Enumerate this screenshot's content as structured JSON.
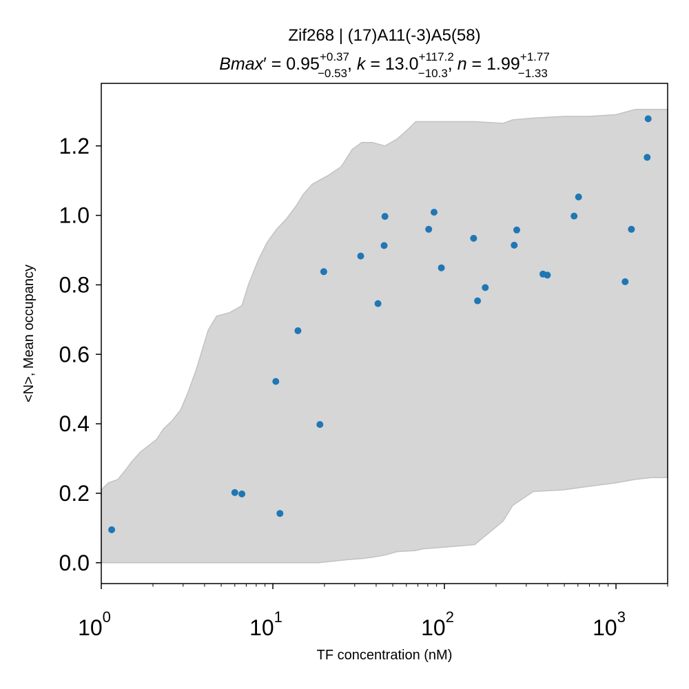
{
  "chart_data": {
    "type": "scatter",
    "title": "Zif268 | (17)A11(-3)A5(58)",
    "subtitle": {
      "bmax": {
        "value": "0.95",
        "plus": "+0.37",
        "minus": "−0.53"
      },
      "k": {
        "value": "13.0",
        "plus": "+117.2",
        "minus": "−10.3"
      },
      "n": {
        "value": "1.99",
        "plus": "+1.77",
        "minus": "−1.33"
      }
    },
    "xlabel": "TF concentration (nM)",
    "ylabel": "<N>, Mean occupancy",
    "xscale": "log",
    "xlim": [
      1,
      2000
    ],
    "ylim": [
      -0.06,
      1.38
    ],
    "x_ticks": [
      {
        "base": "10",
        "exp": "0",
        "value": 1
      },
      {
        "base": "10",
        "exp": "1",
        "value": 10
      },
      {
        "base": "10",
        "exp": "2",
        "value": 100
      },
      {
        "base": "10",
        "exp": "3",
        "value": 1000
      }
    ],
    "y_ticks": [
      "0.0",
      "0.2",
      "0.4",
      "0.6",
      "0.8",
      "1.0",
      "1.2"
    ],
    "grid": false,
    "colors": {
      "points": "#1f77b4",
      "band_fill": "#d6d6d6",
      "band_edge": "#c2c2c2"
    },
    "points": {
      "x": [
        1.15,
        6.0,
        6.6,
        10.4,
        11.0,
        14.0,
        18.8,
        19.8,
        32.5,
        41.0,
        44.5,
        45.0,
        81.0,
        87.0,
        96.0,
        148.0,
        156.0,
        173.0,
        255.0,
        264.0,
        375.0,
        398.0,
        570.0,
        605.0,
        1130.0,
        1230.0,
        1520.0,
        1540.0
      ],
      "y": [
        0.095,
        0.202,
        0.198,
        0.522,
        0.142,
        0.668,
        0.398,
        0.838,
        0.883,
        0.746,
        0.913,
        0.997,
        0.96,
        1.009,
        0.849,
        0.934,
        0.754,
        0.792,
        0.914,
        0.958,
        0.831,
        0.828,
        0.998,
        1.053,
        0.809,
        0.96,
        1.167,
        1.278
      ]
    },
    "band": {
      "x": [
        1,
        1.1,
        1.25,
        1.4,
        1.5,
        1.7,
        2.1,
        2.3,
        2.6,
        2.9,
        3.2,
        3.6,
        4.2,
        4.7,
        5.6,
        6.6,
        7.2,
        8.2,
        9.2,
        10.5,
        12.0,
        13.8,
        15.0,
        17.0,
        18.5,
        21.0,
        25.0,
        29.0,
        33.0,
        38.0,
        45.0,
        53.0,
        62.0,
        68.0,
        75.0,
        95.0,
        150.0,
        220.0,
        250.0,
        330.0,
        500.0,
        700.0,
        1000.0,
        1300.0,
        1600.0,
        2000.0
      ],
      "upper": [
        0.21,
        0.23,
        0.24,
        0.27,
        0.29,
        0.32,
        0.355,
        0.385,
        0.41,
        0.44,
        0.49,
        0.56,
        0.67,
        0.71,
        0.72,
        0.74,
        0.8,
        0.87,
        0.92,
        0.96,
        0.99,
        1.03,
        1.06,
        1.09,
        1.1,
        1.115,
        1.14,
        1.19,
        1.21,
        1.21,
        1.2,
        1.22,
        1.25,
        1.27,
        1.27,
        1.27,
        1.27,
        1.265,
        1.275,
        1.28,
        1.285,
        1.285,
        1.29,
        1.305,
        1.305,
        1.305
      ],
      "lower": [
        0.0,
        0.0,
        0.0,
        0.0,
        0.0,
        0.0,
        0.0,
        0.0,
        0.0,
        0.0,
        0.0,
        0.0,
        0.0,
        0.0,
        0.0,
        0.0,
        0.0,
        0.0,
        0.0,
        0.0,
        0.0,
        0.0,
        0.0,
        0.0,
        0.0,
        0.003,
        0.007,
        0.01,
        0.012,
        0.016,
        0.022,
        0.032,
        0.034,
        0.035,
        0.04,
        0.044,
        0.052,
        0.12,
        0.165,
        0.205,
        0.21,
        0.22,
        0.23,
        0.24,
        0.245,
        0.245
      ]
    }
  }
}
